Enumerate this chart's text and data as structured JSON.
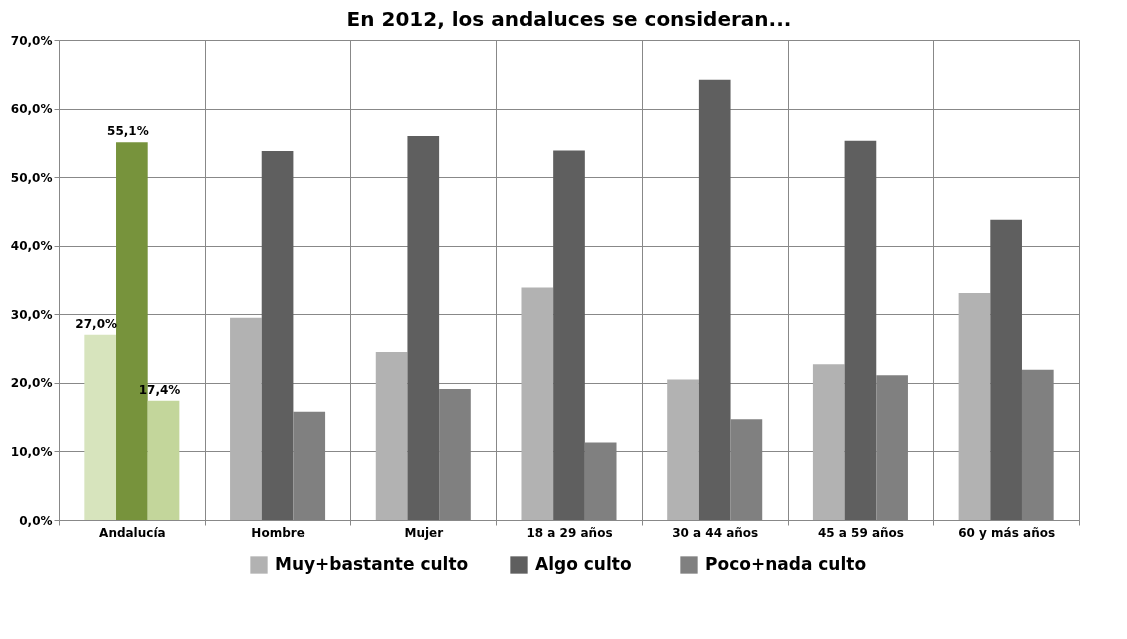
{
  "chart_data": {
    "type": "bar",
    "title": "En 2012, los andaluces se consideran...",
    "categories": [
      "Andalucía",
      "Hombre",
      "Mujer",
      "18 a 29 años",
      "30 a 44 años",
      "45 a 59 años",
      "60 y más años"
    ],
    "series": [
      {
        "name": "Muy+bastante  culto",
        "color": "#b2b2b2",
        "colors": [
          "#d7e4bd",
          "#b2b2b2",
          "#b2b2b2",
          "#b2b2b2",
          "#b2b2b2",
          "#b2b2b2",
          "#b2b2b2"
        ],
        "values": [
          27.0,
          29.5,
          24.5,
          33.9,
          20.5,
          22.7,
          33.1
        ],
        "value_labels": [
          "27,0%",
          null,
          null,
          null,
          null,
          null,
          null
        ]
      },
      {
        "name": "Algo culto",
        "color": "#5f5f5f",
        "colors": [
          "#77933c",
          "#5f5f5f",
          "#5f5f5f",
          "#5f5f5f",
          "#5f5f5f",
          "#5f5f5f",
          "#5f5f5f"
        ],
        "values": [
          55.1,
          53.8,
          56.0,
          53.9,
          64.2,
          55.3,
          43.8
        ],
        "value_labels": [
          "55,1%",
          null,
          null,
          null,
          null,
          null,
          null
        ]
      },
      {
        "name": "Poco+nada culto",
        "color": "#808080",
        "colors": [
          "#c3d69b",
          "#808080",
          "#808080",
          "#808080",
          "#808080",
          "#808080",
          "#808080"
        ],
        "values": [
          17.4,
          15.8,
          19.1,
          11.3,
          14.7,
          21.1,
          21.9
        ],
        "value_labels": [
          "17,4%",
          null,
          null,
          null,
          null,
          null,
          null
        ]
      }
    ],
    "ylim": [
      0,
      70
    ],
    "yticks": [
      {
        "value": 0,
        "label": "0,0%"
      },
      {
        "value": 10,
        "label": "10,0%"
      },
      {
        "value": 20,
        "label": "20,0%"
      },
      {
        "value": 30,
        "label": "30,0%"
      },
      {
        "value": 40,
        "label": "40,0%"
      },
      {
        "value": 50,
        "label": "50,0%"
      },
      {
        "value": 60,
        "label": "60,0%"
      },
      {
        "value": 70,
        "label": "70,0%"
      }
    ],
    "grid": true,
    "legend": "bottom"
  }
}
